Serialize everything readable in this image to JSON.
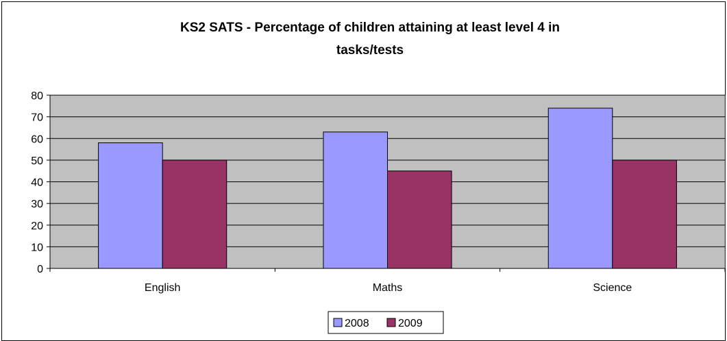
{
  "chart_data": {
    "type": "bar",
    "title_lines": [
      "KS2 SATS - Percentage of children attaining at least level 4 in",
      "tasks/tests"
    ],
    "categories": [
      "English",
      "Maths",
      "Science"
    ],
    "series": [
      {
        "name": "2008",
        "values": [
          58,
          63,
          74
        ],
        "color": "#9999ff"
      },
      {
        "name": "2009",
        "values": [
          50,
          45,
          50
        ],
        "color": "#993366"
      }
    ],
    "ylim": [
      0,
      80
    ],
    "yticks": [
      0,
      10,
      20,
      30,
      40,
      50,
      60,
      70,
      80
    ],
    "plot_background": "#c0c0c0",
    "grid": true,
    "legend_position": "bottom"
  }
}
